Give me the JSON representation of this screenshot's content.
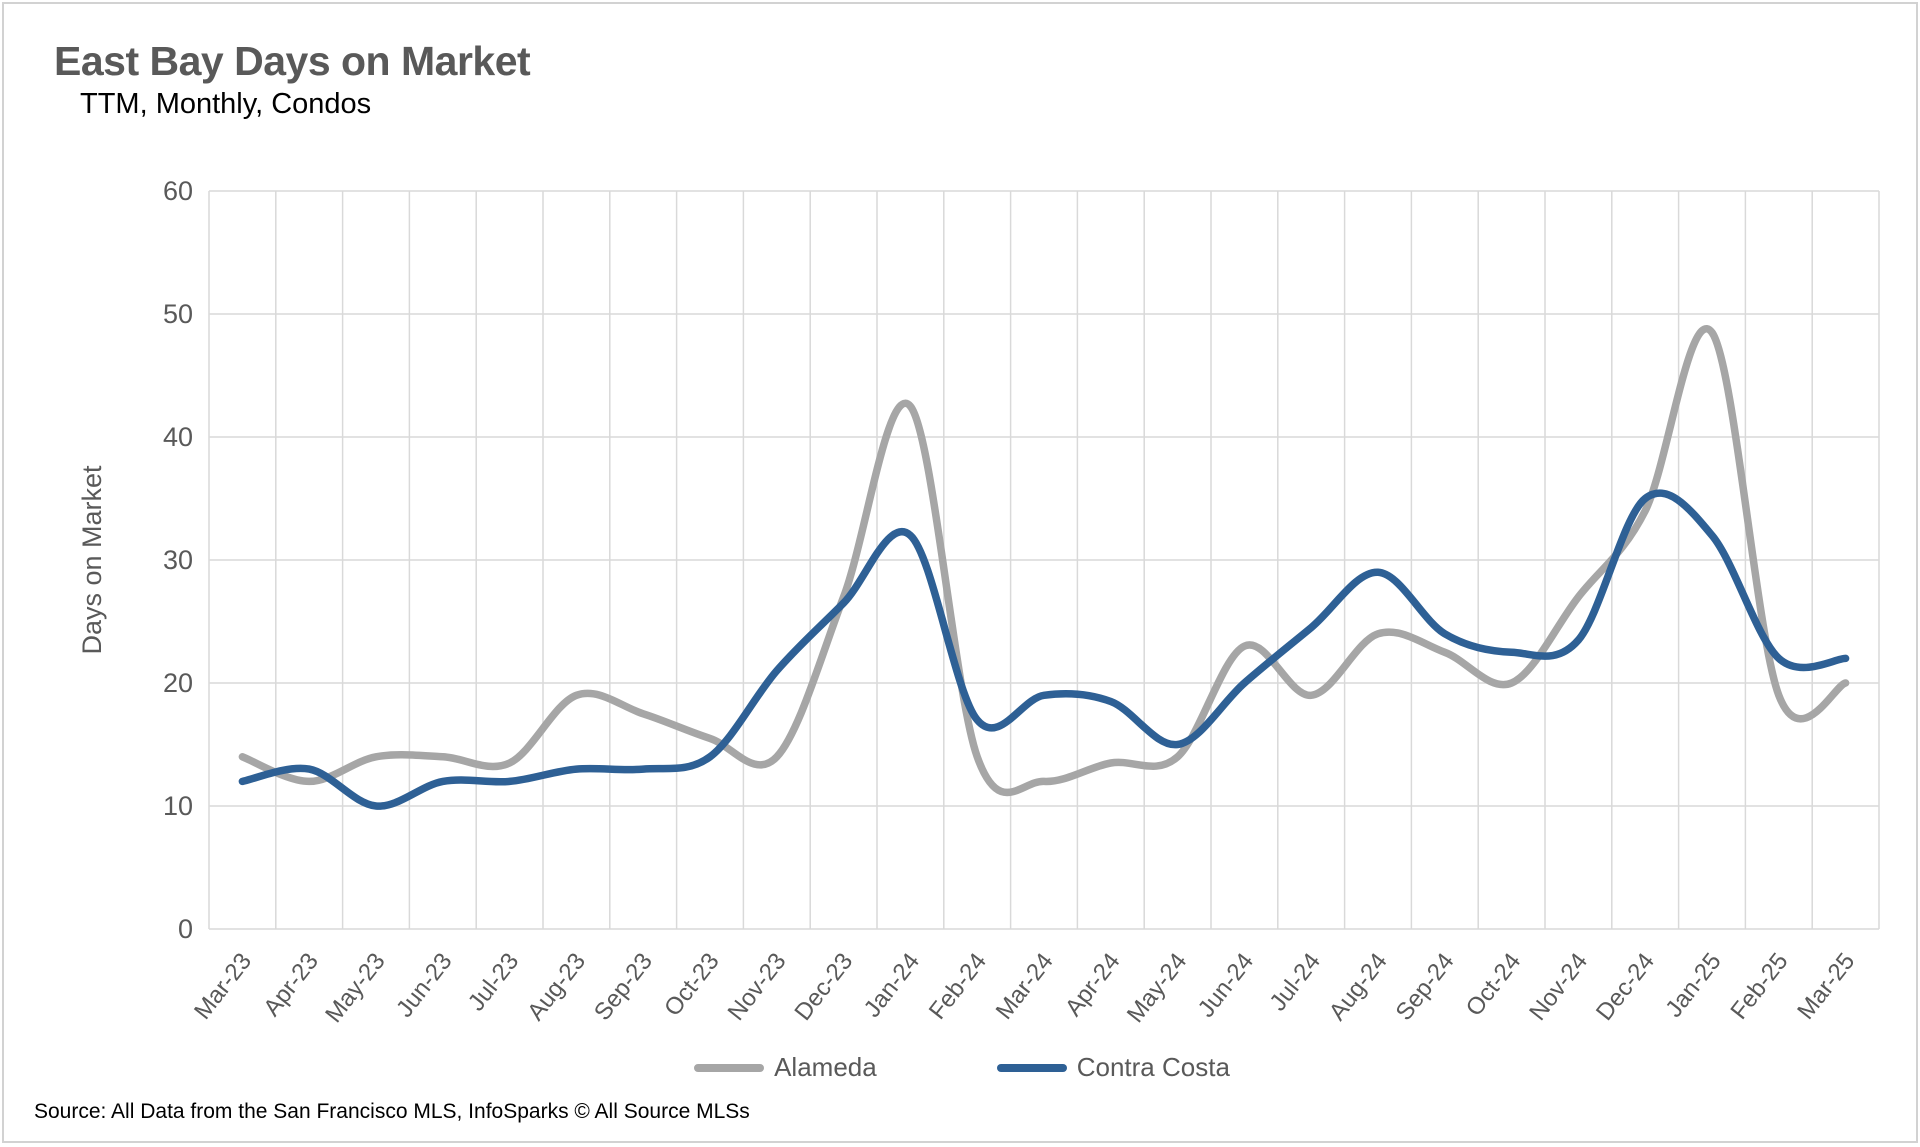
{
  "header": {
    "title": "East Bay Days on Market",
    "subtitle": "TTM, Monthly, Condos"
  },
  "source": {
    "text": "Source: All Data from the San Francisco MLS, InfoSparks © All Source MLSs"
  },
  "legend": {
    "items": [
      {
        "label": "Alameda",
        "color": "#A6A6A6"
      },
      {
        "label": "Contra Costa",
        "color": "#2E6095"
      }
    ]
  },
  "chart_data": {
    "type": "line",
    "title": "East Bay Days on Market",
    "subtitle": "TTM, Monthly, Condos",
    "xlabel": "",
    "ylabel": "Days on Market",
    "ylim": [
      0,
      60
    ],
    "ytick_step": 10,
    "yticks": [
      0,
      10,
      20,
      30,
      40,
      50,
      60
    ],
    "grid": true,
    "smoothing": "spline",
    "legend_position": "bottom",
    "categories": [
      "Mar-23",
      "Apr-23",
      "May-23",
      "Jun-23",
      "Jul-23",
      "Aug-23",
      "Sep-23",
      "Oct-23",
      "Nov-23",
      "Dec-23",
      "Jan-24",
      "Feb-24",
      "Mar-24",
      "Apr-24",
      "May-24",
      "Jun-24",
      "Jul-24",
      "Aug-24",
      "Sep-24",
      "Oct-24",
      "Nov-24",
      "Dec-24",
      "Jan-25",
      "Feb-25",
      "Mar-25"
    ],
    "series": [
      {
        "name": "Alameda",
        "color": "#A6A6A6",
        "values": [
          14,
          12,
          14,
          14,
          13.5,
          19,
          17.5,
          15.5,
          14,
          27,
          42.5,
          14,
          12,
          13.5,
          14,
          23,
          19,
          24,
          22.5,
          20,
          27,
          34,
          48.5,
          19,
          20
        ]
      },
      {
        "name": "Contra Costa",
        "color": "#2E6095",
        "values": [
          12,
          13,
          10,
          12,
          12,
          13,
          13,
          14,
          21,
          26.5,
          32,
          17,
          19,
          18.5,
          15,
          20,
          24.5,
          29,
          24,
          22.5,
          23.5,
          35,
          32,
          22,
          22
        ]
      }
    ],
    "style": {
      "gridline_color": "#D9D9D9",
      "axis_text_color": "#595959",
      "line_width": 7.5
    }
  }
}
